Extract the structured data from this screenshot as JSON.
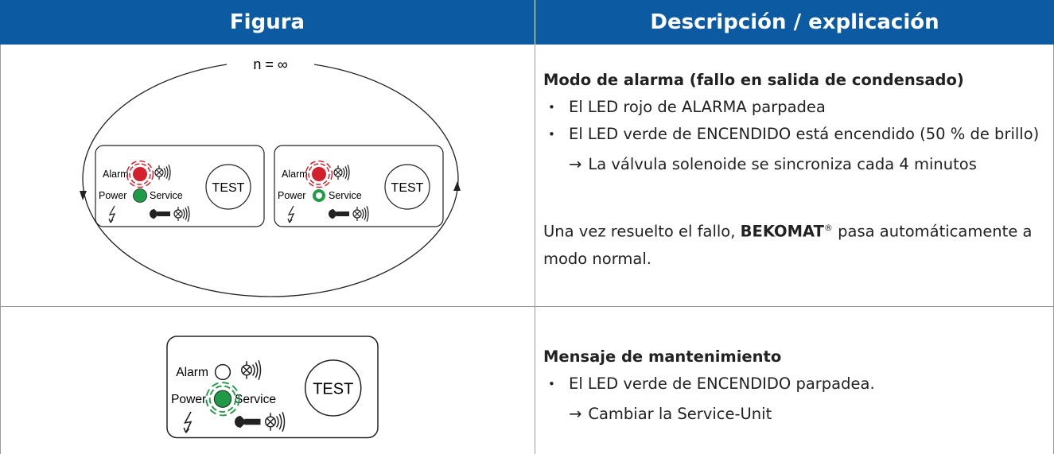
{
  "table": {
    "headers": [
      "Figura",
      "Descripción / explicación"
    ],
    "rows": [
      {
        "figure": {
          "loop_label": "n = ∞",
          "panels": [
            {
              "alarm": "Alarm",
              "power": "Power",
              "service": "Service",
              "button": "TEST"
            },
            {
              "alarm": "Alarm",
              "power": "Power",
              "service": "Service",
              "button": "TEST"
            }
          ]
        },
        "description": {
          "heading": "Modo de alarma (fallo en salida de condensado)",
          "bullets": [
            "El LED rojo de ALARMA parpadea",
            "El LED verde de ENCENDIDO está encendido (50 % de brillo)"
          ],
          "arrow": "La válvula solenoide se sincroniza cada 4 minutos",
          "note": {
            "before": "Una vez resuelto el fallo, ",
            "brand": "BEKOMAT",
            "mark": "®",
            "after": " pasa automáticamente a modo normal."
          }
        }
      },
      {
        "figure": {
          "panels": [
            {
              "alarm": "Alarm",
              "power": "Power",
              "service": "Service",
              "button": "TEST"
            }
          ]
        },
        "description": {
          "heading": "Mensaje de mantenimiento",
          "bullets": [
            "El LED verde de ENCENDIDO parpadea."
          ],
          "arrow": "Cambiar la Service-Unit"
        }
      }
    ]
  }
}
